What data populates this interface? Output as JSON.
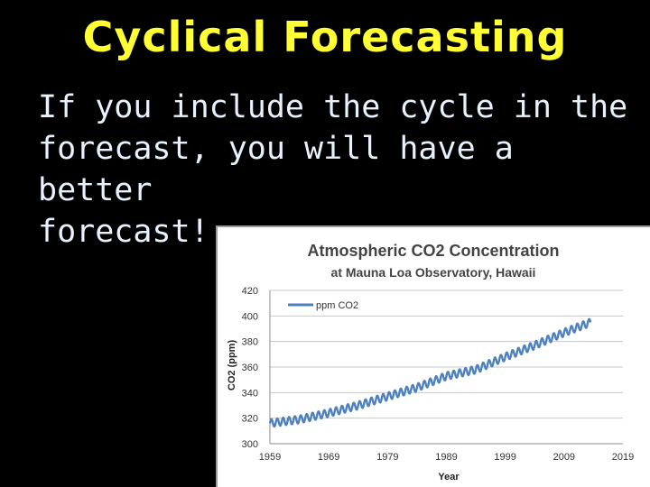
{
  "slide": {
    "title": "Cyclical Forecasting",
    "body_lines": [
      "If you include the cycle in the",
      "forecast, you will have a better",
      "forecast!"
    ],
    "colors": {
      "title": "#ffff33",
      "body": "#e8f2ff",
      "background": "#000000",
      "series": "#4f81bd"
    }
  },
  "chart_data": {
    "type": "line",
    "title": "Atmospheric CO2 Concentration",
    "subtitle": "at Mauna Loa Observatory, Hawaii",
    "xlabel": "Year",
    "ylabel": "CO2 (ppm)",
    "xlim": [
      1959,
      2019
    ],
    "ylim": [
      300,
      420
    ],
    "x_ticks": [
      1959,
      1969,
      1979,
      1989,
      1999,
      2009,
      2019
    ],
    "y_ticks": [
      300,
      320,
      340,
      360,
      380,
      400,
      420
    ],
    "legend": {
      "position": "top-left",
      "entries": [
        "ppm CO2"
      ]
    },
    "grid": "horizontal",
    "series": [
      {
        "name": "ppm CO2",
        "x_start": 1959,
        "x_end": 2013.5,
        "seasonal_amplitude": 3,
        "annual_trend": [
          [
            1959,
            316
          ],
          [
            1964,
            319
          ],
          [
            1969,
            324
          ],
          [
            1974,
            330
          ],
          [
            1979,
            337
          ],
          [
            1984,
            344
          ],
          [
            1989,
            353
          ],
          [
            1994,
            358
          ],
          [
            1999,
            368
          ],
          [
            2004,
            377
          ],
          [
            2009,
            387
          ],
          [
            2013.5,
            395
          ]
        ]
      }
    ]
  }
}
